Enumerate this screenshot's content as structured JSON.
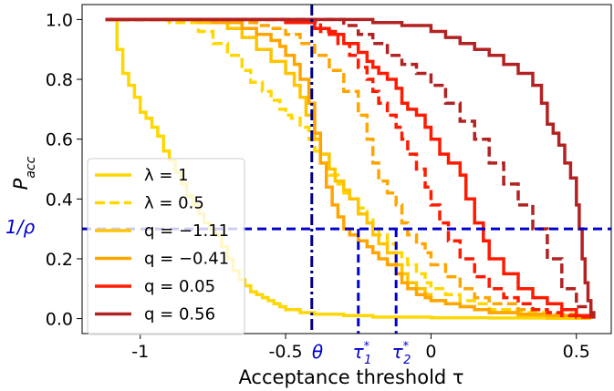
{
  "chart_data": {
    "type": "line",
    "xlabel": "Acceptance threshold τ",
    "ylabel": "P_acc",
    "xlim": [
      -1.2,
      0.62
    ],
    "ylim": [
      -0.05,
      1.05
    ],
    "x_ticks": [
      {
        "value": -1,
        "label": "-1"
      },
      {
        "value": -0.5,
        "label": "-0.5"
      },
      {
        "value": 0,
        "label": "0"
      },
      {
        "value": 0.5,
        "label": "0.5"
      }
    ],
    "y_ticks": [
      {
        "value": 0.0,
        "label": "0.0"
      },
      {
        "value": 0.2,
        "label": "0.2"
      },
      {
        "value": 0.4,
        "label": "0.4"
      },
      {
        "value": 0.6,
        "label": "0.6"
      },
      {
        "value": 0.8,
        "label": "0.8"
      },
      {
        "value": 1.0,
        "label": "1.0"
      }
    ],
    "grid": false,
    "legend_position": "lower-left",
    "series": [
      {
        "name": "λ = 1",
        "color": "#FFD700",
        "dash": "solid",
        "x": [
          -1.12,
          -1.08,
          -1.06,
          -1.04,
          -1.02,
          -1.0,
          -0.98,
          -0.96,
          -0.94,
          -0.92,
          -0.9,
          -0.88,
          -0.86,
          -0.84,
          -0.82,
          -0.8,
          -0.78,
          -0.76,
          -0.74,
          -0.72,
          -0.7,
          -0.68,
          -0.66,
          -0.64,
          -0.62,
          -0.6,
          -0.58,
          -0.56,
          -0.54,
          -0.52,
          -0.5,
          -0.45,
          -0.4,
          -0.3,
          -0.2,
          0.0,
          0.2,
          0.4,
          0.55
        ],
        "y": [
          1.0,
          0.9,
          0.82,
          0.78,
          0.74,
          0.69,
          0.67,
          0.64,
          0.61,
          0.56,
          0.53,
          0.49,
          0.45,
          0.41,
          0.38,
          0.35,
          0.32,
          0.3,
          0.28,
          0.24,
          0.2,
          0.16,
          0.13,
          0.11,
          0.09,
          0.08,
          0.07,
          0.06,
          0.05,
          0.04,
          0.03,
          0.02,
          0.015,
          0.01,
          0.005,
          0.003,
          0.002,
          0.001,
          0.0
        ]
      },
      {
        "name": "λ = 0.5",
        "color": "#FFD700",
        "dash": "dashed",
        "x": [
          -1.12,
          -0.9,
          -0.8,
          -0.75,
          -0.7,
          -0.65,
          -0.62,
          -0.58,
          -0.55,
          -0.52,
          -0.5,
          -0.48,
          -0.45,
          -0.42,
          -0.4,
          -0.38,
          -0.35,
          -0.32,
          -0.3,
          -0.28,
          -0.25,
          -0.22,
          -0.2,
          -0.18,
          -0.15,
          -0.12,
          -0.1,
          -0.08,
          -0.05,
          -0.02,
          0.0,
          0.05,
          0.1,
          0.15,
          0.2,
          0.3,
          0.4,
          0.5,
          0.55
        ],
        "y": [
          1.0,
          0.99,
          0.96,
          0.92,
          0.88,
          0.83,
          0.79,
          0.76,
          0.73,
          0.7,
          0.68,
          0.67,
          0.64,
          0.6,
          0.56,
          0.52,
          0.48,
          0.45,
          0.42,
          0.4,
          0.37,
          0.33,
          0.3,
          0.28,
          0.25,
          0.22,
          0.2,
          0.18,
          0.15,
          0.12,
          0.1,
          0.08,
          0.06,
          0.05,
          0.03,
          0.02,
          0.01,
          0.005,
          0.0
        ]
      },
      {
        "name": "q = −1.11",
        "color": "#FFC400",
        "dash": "solid",
        "x": [
          -1.12,
          -0.8,
          -0.7,
          -0.65,
          -0.6,
          -0.55,
          -0.5,
          -0.47,
          -0.45,
          -0.43,
          -0.4,
          -0.38,
          -0.35,
          -0.33,
          -0.3,
          -0.28,
          -0.25,
          -0.22,
          -0.2,
          -0.18,
          -0.15,
          -0.12,
          -0.1,
          -0.08,
          -0.05,
          -0.02,
          0.0,
          0.05,
          0.1,
          0.15,
          0.2,
          0.3,
          0.4,
          0.5,
          0.55
        ],
        "y": [
          1.0,
          0.99,
          0.97,
          0.94,
          0.9,
          0.86,
          0.82,
          0.78,
          0.74,
          0.68,
          0.6,
          0.55,
          0.5,
          0.46,
          0.43,
          0.4,
          0.35,
          0.32,
          0.28,
          0.25,
          0.22,
          0.18,
          0.15,
          0.12,
          0.1,
          0.08,
          0.06,
          0.05,
          0.04,
          0.03,
          0.02,
          0.01,
          0.005,
          0.002,
          0.0
        ]
      },
      {
        "name": "q = −0.41",
        "color": "#FFA500",
        "dash": "solid",
        "x": [
          -1.12,
          -0.75,
          -0.65,
          -0.6,
          -0.55,
          -0.52,
          -0.5,
          -0.47,
          -0.45,
          -0.42,
          -0.4,
          -0.38,
          -0.36,
          -0.34,
          -0.32,
          -0.3,
          -0.28,
          -0.25,
          -0.22,
          -0.2,
          -0.18,
          -0.15,
          -0.12,
          -0.1,
          -0.08,
          -0.05,
          -0.02,
          0.0,
          0.05,
          0.1,
          0.15,
          0.2,
          0.3,
          0.4,
          0.5,
          0.55
        ],
        "y": [
          1.0,
          0.99,
          0.97,
          0.95,
          0.93,
          0.91,
          0.88,
          0.85,
          0.8,
          0.72,
          0.62,
          0.52,
          0.44,
          0.38,
          0.34,
          0.3,
          0.28,
          0.26,
          0.24,
          0.22,
          0.2,
          0.18,
          0.15,
          0.12,
          0.1,
          0.08,
          0.07,
          0.06,
          0.05,
          0.04,
          0.03,
          0.02,
          0.015,
          0.01,
          0.005,
          0.0
        ]
      },
      {
        "name": "q = −0.41 (dashed)",
        "color": "#FFA500",
        "dash": "dashed",
        "x": [
          -1.12,
          -0.7,
          -0.6,
          -0.55,
          -0.5,
          -0.45,
          -0.4,
          -0.35,
          -0.3,
          -0.25,
          -0.22,
          -0.2,
          -0.18,
          -0.15,
          -0.12,
          -0.1,
          -0.08,
          -0.05,
          -0.02,
          0.0,
          0.05,
          0.1,
          0.15,
          0.2,
          0.3,
          0.4,
          0.5,
          0.55
        ],
        "y": [
          1.0,
          0.99,
          0.98,
          0.97,
          0.95,
          0.92,
          0.88,
          0.83,
          0.76,
          0.68,
          0.6,
          0.52,
          0.46,
          0.42,
          0.38,
          0.32,
          0.28,
          0.25,
          0.22,
          0.18,
          0.14,
          0.1,
          0.07,
          0.05,
          0.03,
          0.015,
          0.005,
          0.0
        ]
      },
      {
        "name": "q = 0.05",
        "color": "#FF1A00",
        "dash": "solid",
        "x": [
          -1.12,
          -0.5,
          -0.4,
          -0.35,
          -0.3,
          -0.25,
          -0.22,
          -0.2,
          -0.18,
          -0.15,
          -0.12,
          -0.1,
          -0.08,
          -0.05,
          -0.02,
          0.0,
          0.03,
          0.06,
          0.1,
          0.12,
          0.15,
          0.18,
          0.2,
          0.25,
          0.3,
          0.35,
          0.4,
          0.45,
          0.5,
          0.55
        ],
        "y": [
          1.0,
          0.99,
          0.97,
          0.95,
          0.92,
          0.89,
          0.86,
          0.84,
          0.82,
          0.8,
          0.77,
          0.72,
          0.7,
          0.68,
          0.64,
          0.6,
          0.55,
          0.52,
          0.48,
          0.4,
          0.32,
          0.26,
          0.2,
          0.15,
          0.1,
          0.07,
          0.05,
          0.03,
          0.01,
          0.0
        ]
      },
      {
        "name": "q = 0.05 (dashed)",
        "color": "#FF1A00",
        "dash": "dashed",
        "x": [
          -1.12,
          -0.45,
          -0.38,
          -0.32,
          -0.28,
          -0.25,
          -0.22,
          -0.2,
          -0.18,
          -0.15,
          -0.12,
          -0.1,
          -0.08,
          -0.05,
          -0.02,
          0.0,
          0.03,
          0.06,
          0.1,
          0.15,
          0.2,
          0.25,
          0.3,
          0.35,
          0.4,
          0.45,
          0.5,
          0.55
        ],
        "y": [
          1.0,
          0.99,
          0.96,
          0.92,
          0.88,
          0.84,
          0.8,
          0.76,
          0.72,
          0.68,
          0.64,
          0.6,
          0.55,
          0.5,
          0.44,
          0.38,
          0.32,
          0.26,
          0.2,
          0.14,
          0.1,
          0.07,
          0.05,
          0.03,
          0.02,
          0.01,
          0.005,
          0.0
        ]
      },
      {
        "name": "q = 0.56",
        "color": "#B22222",
        "dash": "solid",
        "x": [
          -1.12,
          -0.4,
          -0.2,
          -0.1,
          0.0,
          0.05,
          0.1,
          0.15,
          0.2,
          0.25,
          0.3,
          0.35,
          0.38,
          0.4,
          0.42,
          0.44,
          0.46,
          0.48,
          0.5,
          0.51,
          0.52,
          0.53,
          0.54,
          0.55,
          0.56
        ],
        "y": [
          1.0,
          1.0,
          0.99,
          0.98,
          0.96,
          0.94,
          0.92,
          0.9,
          0.88,
          0.85,
          0.82,
          0.78,
          0.72,
          0.65,
          0.62,
          0.58,
          0.52,
          0.47,
          0.38,
          0.3,
          0.2,
          0.12,
          0.06,
          0.02,
          0.0
        ]
      },
      {
        "name": "q = 0.56 (dashed)",
        "color": "#B22222",
        "dash": "dashed",
        "x": [
          -1.12,
          -0.4,
          -0.3,
          -0.25,
          -0.2,
          -0.15,
          -0.1,
          -0.05,
          0.0,
          0.05,
          0.1,
          0.15,
          0.2,
          0.25,
          0.3,
          0.35,
          0.4,
          0.45,
          0.5,
          0.55
        ],
        "y": [
          1.0,
          1.0,
          0.98,
          0.95,
          0.92,
          0.88,
          0.85,
          0.82,
          0.78,
          0.72,
          0.66,
          0.6,
          0.52,
          0.45,
          0.38,
          0.3,
          0.2,
          0.1,
          0.04,
          0.0
        ]
      }
    ],
    "legend": [
      {
        "label": "λ = 1",
        "color": "#FFD700",
        "dash": "solid"
      },
      {
        "label": "λ = 0.5",
        "color": "#FFD700",
        "dash": "dashed"
      },
      {
        "label": "q = −1.11",
        "color": "#FFC400",
        "dash": "solid"
      },
      {
        "label": "q = −0.41",
        "color": "#FFA500",
        "dash": "solid"
      },
      {
        "label": "q = 0.05",
        "color": "#FF1A00",
        "dash": "solid"
      },
      {
        "label": "q = 0.56",
        "color": "#B22222",
        "dash": "solid"
      }
    ],
    "reference_lines": {
      "horizontal": {
        "y": 0.3,
        "label": "1/ρ",
        "color": "#0000CD"
      },
      "theta": {
        "x": -0.41,
        "label": "θ",
        "color": "#000080"
      },
      "tau1": {
        "x": -0.25,
        "label": "τ₁*",
        "ymax": 0.3,
        "color": "#0000CD"
      },
      "tau2": {
        "x": -0.12,
        "label": "τ₂*",
        "ymax": 0.3,
        "color": "#0000CD"
      }
    }
  }
}
